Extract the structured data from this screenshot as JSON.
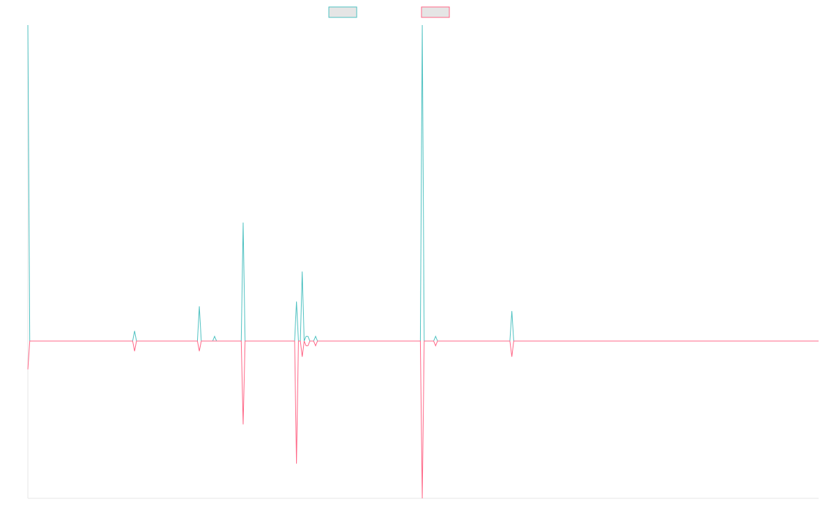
{
  "chart_data": {
    "type": "line",
    "title": "",
    "xlabel": "",
    "ylabel": "",
    "x_count": 415,
    "ylim": [
      -1,
      1
    ],
    "legend_position": "top-center",
    "grid": false,
    "series": [
      {
        "name": "",
        "color": "#4bc0c0",
        "fill_color": "#e5e5e5",
        "values": [
          {
            "x": 0,
            "y": 1.0
          },
          {
            "x": 1,
            "y": 0.0
          },
          {
            "x": 55,
            "y": 0.0
          },
          {
            "x": 56,
            "y": 0.032
          },
          {
            "x": 57,
            "y": 0.0
          },
          {
            "x": 89,
            "y": 0.0
          },
          {
            "x": 90,
            "y": 0.11
          },
          {
            "x": 91,
            "y": 0.0
          },
          {
            "x": 97,
            "y": 0.0
          },
          {
            "x": 98,
            "y": 0.015
          },
          {
            "x": 99,
            "y": 0.0
          },
          {
            "x": 112,
            "y": 0.0
          },
          {
            "x": 113,
            "y": 0.375
          },
          {
            "x": 114,
            "y": 0.0
          },
          {
            "x": 140,
            "y": 0.0
          },
          {
            "x": 141,
            "y": 0.125
          },
          {
            "x": 142,
            "y": 0.0
          },
          {
            "x": 143,
            "y": 0.0
          },
          {
            "x": 144,
            "y": 0.22
          },
          {
            "x": 145,
            "y": 0.0
          },
          {
            "x": 146,
            "y": 0.015
          },
          {
            "x": 147,
            "y": 0.015
          },
          {
            "x": 148,
            "y": 0.0
          },
          {
            "x": 150,
            "y": 0.0
          },
          {
            "x": 151,
            "y": 0.015
          },
          {
            "x": 152,
            "y": 0.0
          },
          {
            "x": 206,
            "y": 0.0
          },
          {
            "x": 207,
            "y": 1.0
          },
          {
            "x": 208,
            "y": 0.0
          },
          {
            "x": 213,
            "y": 0.0
          },
          {
            "x": 214,
            "y": 0.015
          },
          {
            "x": 215,
            "y": 0.0
          },
          {
            "x": 253,
            "y": 0.0
          },
          {
            "x": 254,
            "y": 0.095
          },
          {
            "x": 255,
            "y": 0.0
          },
          {
            "x": 415,
            "y": 0.0
          }
        ]
      },
      {
        "name": "",
        "color": "#ff6384",
        "fill_color": "#e5e5e5",
        "values": [
          {
            "x": 0,
            "y": -0.09
          },
          {
            "x": 1,
            "y": 0.0
          },
          {
            "x": 55,
            "y": 0.0
          },
          {
            "x": 56,
            "y": -0.032
          },
          {
            "x": 57,
            "y": 0.0
          },
          {
            "x": 89,
            "y": 0.0
          },
          {
            "x": 90,
            "y": -0.032
          },
          {
            "x": 91,
            "y": 0.0
          },
          {
            "x": 112,
            "y": 0.0
          },
          {
            "x": 113,
            "y": -0.265
          },
          {
            "x": 114,
            "y": 0.0
          },
          {
            "x": 140,
            "y": 0.0
          },
          {
            "x": 141,
            "y": -0.39
          },
          {
            "x": 142,
            "y": 0.0
          },
          {
            "x": 143,
            "y": 0.0
          },
          {
            "x": 144,
            "y": -0.05
          },
          {
            "x": 145,
            "y": 0.0
          },
          {
            "x": 146,
            "y": -0.015
          },
          {
            "x": 147,
            "y": -0.015
          },
          {
            "x": 148,
            "y": 0.0
          },
          {
            "x": 150,
            "y": 0.0
          },
          {
            "x": 151,
            "y": -0.015
          },
          {
            "x": 152,
            "y": 0.0
          },
          {
            "x": 206,
            "y": 0.0
          },
          {
            "x": 207,
            "y": -0.5
          },
          {
            "x": 208,
            "y": 0.0
          },
          {
            "x": 213,
            "y": 0.0
          },
          {
            "x": 214,
            "y": -0.015
          },
          {
            "x": 215,
            "y": 0.0
          },
          {
            "x": 253,
            "y": 0.0
          },
          {
            "x": 254,
            "y": -0.05
          },
          {
            "x": 255,
            "y": 0.0
          },
          {
            "x": 415,
            "y": 0.0
          }
        ]
      }
    ]
  }
}
